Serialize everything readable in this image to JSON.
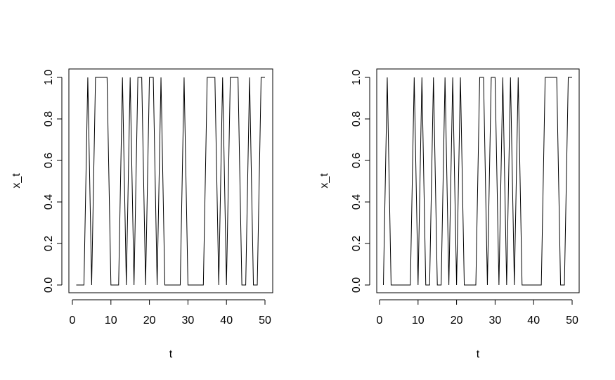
{
  "chart_data": [
    {
      "type": "line",
      "title": "",
      "xlabel": "t",
      "ylabel": "x_t",
      "xlim": [
        0,
        50
      ],
      "ylim": [
        0,
        1
      ],
      "x_ticks": [
        0,
        10,
        20,
        30,
        40,
        50
      ],
      "y_ticks": [
        0.0,
        0.2,
        0.4,
        0.6,
        0.8,
        1.0
      ],
      "x_tick_labels": [
        "0",
        "10",
        "20",
        "30",
        "40",
        "50"
      ],
      "y_tick_labels": [
        "0.0",
        "0.2",
        "0.4",
        "0.6",
        "0.8",
        "1.0"
      ],
      "grid": false,
      "series": [
        {
          "x": [
            1,
            2,
            3,
            4,
            5,
            6,
            7,
            8,
            9,
            10,
            11,
            12,
            13,
            14,
            15,
            16,
            17,
            18,
            19,
            20,
            21,
            22,
            23,
            24,
            25,
            26,
            27,
            28,
            29,
            30,
            31,
            32,
            33,
            34,
            35,
            36,
            37,
            38,
            39,
            40,
            41,
            42,
            43,
            44,
            45,
            46,
            47,
            48,
            49,
            50
          ],
          "values": [
            0,
            0,
            0,
            1,
            0,
            1,
            1,
            1,
            1,
            0,
            0,
            0,
            1,
            0,
            1,
            0,
            1,
            1,
            0,
            1,
            1,
            0,
            1,
            0,
            0,
            0,
            0,
            0,
            1,
            0,
            0,
            0,
            0,
            0,
            1,
            1,
            1,
            0,
            1,
            0,
            1,
            1,
            1,
            0,
            0,
            1,
            0,
            0,
            1,
            1
          ]
        }
      ],
      "color": "#000000"
    },
    {
      "type": "line",
      "title": "",
      "xlabel": "t",
      "ylabel": "x_t",
      "xlim": [
        0,
        50
      ],
      "ylim": [
        0,
        1
      ],
      "x_ticks": [
        0,
        10,
        20,
        30,
        40,
        50
      ],
      "y_ticks": [
        0.0,
        0.2,
        0.4,
        0.6,
        0.8,
        1.0
      ],
      "x_tick_labels": [
        "0",
        "10",
        "20",
        "30",
        "40",
        "50"
      ],
      "y_tick_labels": [
        "0.0",
        "0.2",
        "0.4",
        "0.6",
        "0.8",
        "1.0"
      ],
      "grid": false,
      "series": [
        {
          "x": [
            1,
            2,
            3,
            4,
            5,
            6,
            7,
            8,
            9,
            10,
            11,
            12,
            13,
            14,
            15,
            16,
            17,
            18,
            19,
            20,
            21,
            22,
            23,
            24,
            25,
            26,
            27,
            28,
            29,
            30,
            31,
            32,
            33,
            34,
            35,
            36,
            37,
            38,
            39,
            40,
            41,
            42,
            43,
            44,
            45,
            46,
            47,
            48,
            49,
            50
          ],
          "values": [
            0,
            1,
            0,
            0,
            0,
            0,
            0,
            0,
            1,
            0,
            1,
            0,
            0,
            1,
            0,
            0,
            1,
            0,
            1,
            0,
            1,
            0,
            0,
            0,
            0,
            1,
            1,
            0,
            1,
            1,
            0,
            1,
            0,
            1,
            0,
            1,
            0,
            0,
            0,
            0,
            0,
            0,
            1,
            1,
            1,
            1,
            0,
            0,
            1,
            1
          ]
        }
      ],
      "color": "#000000"
    }
  ]
}
